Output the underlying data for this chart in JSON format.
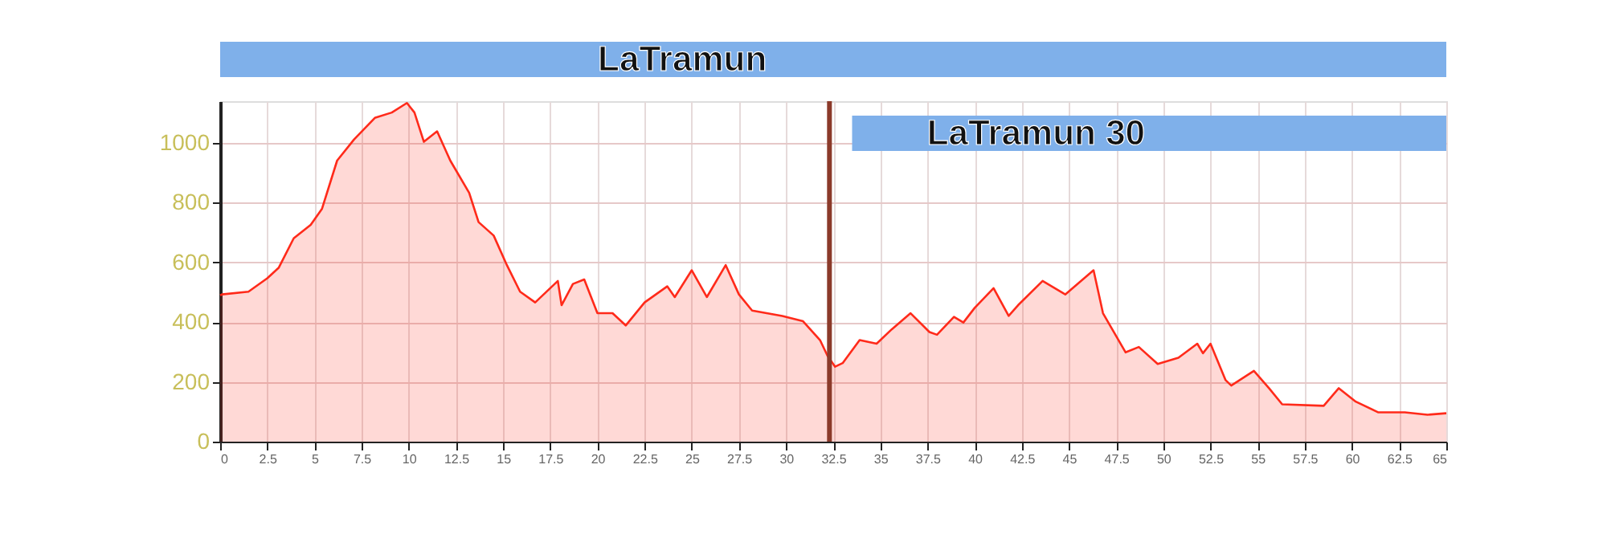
{
  "chart_data": {
    "type": "area",
    "x": [
      0,
      0.1,
      1.5,
      2.5,
      3.1,
      3.9,
      4.8,
      5.4,
      6.2,
      7.1,
      8.2,
      9.1,
      9.9,
      10.3,
      10.8,
      11.5,
      12.2,
      13.2,
      13.7,
      14.5,
      15.2,
      15.9,
      16.7,
      17.9,
      18.1,
      18.7,
      19.3,
      20.0,
      20.8,
      21.5,
      22.5,
      23.7,
      24.1,
      25.0,
      25.8,
      26.8,
      27.5,
      28.2,
      29.8,
      30.9,
      31.8,
      32.2,
      32.6,
      33.0,
      33.9,
      34.8,
      35.6,
      36.6,
      37.6,
      38.0,
      38.9,
      39.4,
      40.0,
      41.0,
      41.8,
      42.3,
      43.6,
      44.8,
      46.3,
      46.8,
      48.0,
      48.7,
      49.7,
      50.8,
      51.8,
      52.1,
      52.5,
      53.3,
      53.6,
      54.8,
      55.6,
      56.3,
      58.5,
      59.3,
      60.2,
      61.4,
      62.8,
      64.0,
      65.0
    ],
    "series": [
      {
        "color": "#ff2a1a",
        "values": [
          490,
          493,
          502,
          547,
          582,
          681,
          726,
          780,
          941,
          1012,
          1084,
          1102,
          1134,
          1102,
          1004,
          1039,
          941,
          833,
          735,
          690,
          591,
          502,
          466,
          538,
          457,
          528,
          543,
          430,
          430,
          389,
          466,
          520,
          484,
          574,
          484,
          591,
          493,
          439,
          421,
          403,
          340,
          287,
          251,
          263,
          340,
          328,
          376,
          430,
          367,
          358,
          418,
          399,
          448,
          514,
          421,
          457,
          538,
          493,
          574,
          430,
          299,
          317,
          260,
          281,
          328,
          296,
          328,
          206,
          188,
          237,
          179,
          125,
          120,
          179,
          134,
          98,
          98,
          90,
          95
        ]
      }
    ],
    "xlim": [
      0,
      65
    ],
    "xticks": [
      0,
      2.5,
      5,
      7.5,
      10,
      12.5,
      15,
      17.5,
      20,
      22.5,
      25,
      27.5,
      30,
      32.5,
      35,
      37.5,
      40,
      42.5,
      45,
      47.5,
      50,
      52.5,
      55,
      57.5,
      60,
      62.5,
      65
    ],
    "ylim": [
      0,
      1140
    ],
    "yticks": [
      0,
      200,
      400,
      600,
      800,
      1000
    ],
    "grid": true,
    "line_style": "solid",
    "ref_lines": [
      {
        "axis": "x",
        "value": 32.3,
        "color": "#8b3a2a"
      }
    ],
    "bands": [
      {
        "axis": "x",
        "from": 0,
        "to": 65,
        "label": "LaTramun"
      },
      {
        "axis": "x",
        "from": 33.5,
        "to": 65,
        "label": "LaTramun 30"
      }
    ]
  }
}
